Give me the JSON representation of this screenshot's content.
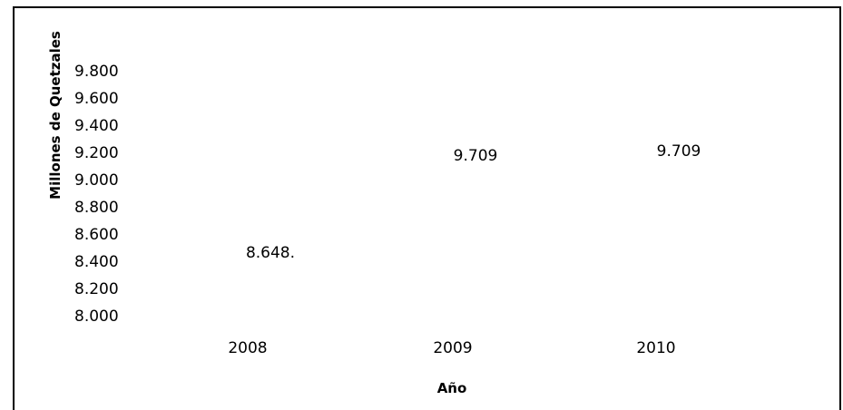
{
  "chart_data": {
    "type": "bar",
    "title": "",
    "xlabel": "Año",
    "ylabel": "Millones de Quetzales",
    "categories": [
      "2008",
      "2009",
      "2010"
    ],
    "values": [
      8648,
      9709,
      9709
    ],
    "data_labels": [
      "8.648.",
      "9.709",
      "9.709"
    ],
    "y_ticks": [
      "9.800",
      "9.600",
      "9.400",
      "9.200",
      "9.000",
      "8.800",
      "8.600",
      "8.400",
      "8.200",
      "8.000"
    ],
    "ylim": [
      8000,
      9800
    ],
    "grid": false,
    "legend": "none"
  }
}
